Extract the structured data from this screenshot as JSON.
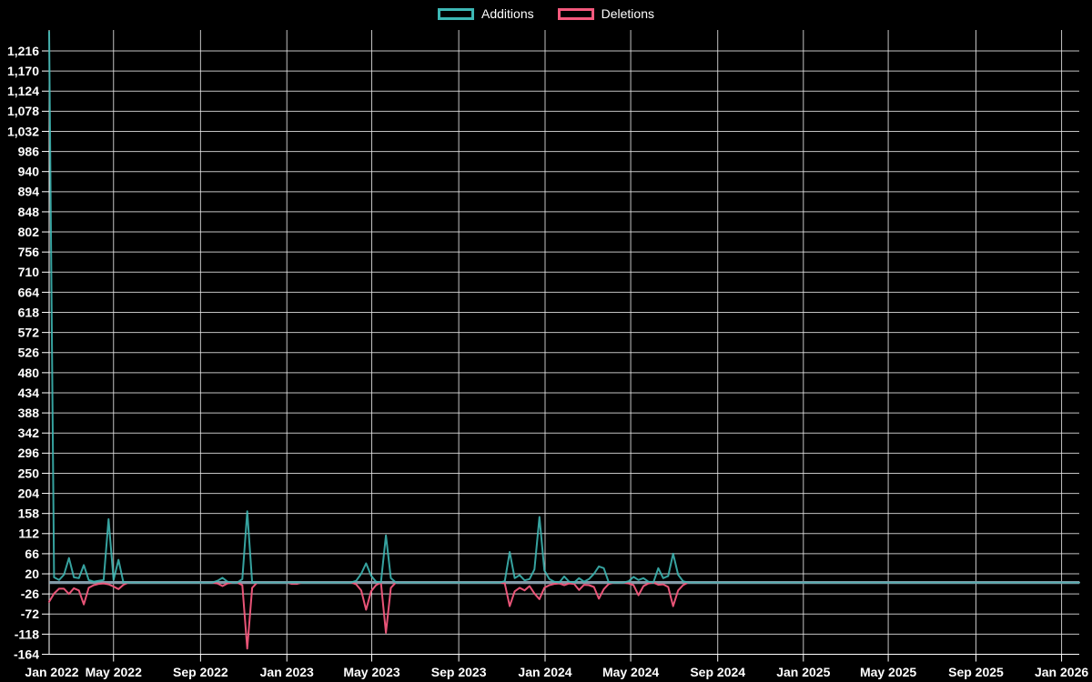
{
  "legend": {
    "items": [
      {
        "id": "additions",
        "label": "Additions",
        "color": "#3db8b5"
      },
      {
        "id": "deletions",
        "label": "Deletions",
        "color": "#f4597d"
      }
    ]
  },
  "chart_data": {
    "type": "line",
    "title": "",
    "xlabel": "",
    "ylabel": "",
    "x_unit": "weeks since 2022-01-30",
    "total_weeks": 209,
    "series": [
      {
        "name": "Additions",
        "color": "#3db8b5"
      },
      {
        "name": "Deletions",
        "color": "#f4597d"
      }
    ],
    "points_note": "sparse [week_index, additions, deletions]; all other weeks are 0",
    "points": [
      [
        0,
        1260,
        -44
      ],
      [
        1,
        12,
        -25
      ],
      [
        2,
        6,
        -14
      ],
      [
        3,
        18,
        -14
      ],
      [
        4,
        56,
        -26
      ],
      [
        5,
        12,
        -13
      ],
      [
        6,
        10,
        -18
      ],
      [
        7,
        40,
        -50
      ],
      [
        8,
        6,
        -12
      ],
      [
        9,
        2,
        -6
      ],
      [
        10,
        4,
        -3
      ],
      [
        11,
        6,
        -2
      ],
      [
        12,
        145,
        -4
      ],
      [
        13,
        6,
        -9
      ],
      [
        14,
        52,
        -15
      ],
      [
        15,
        0,
        -5
      ],
      [
        34,
        4,
        -2
      ],
      [
        35,
        11,
        -8
      ],
      [
        36,
        2,
        -2
      ],
      [
        39,
        8,
        -6
      ],
      [
        40,
        163,
        -151
      ],
      [
        41,
        0,
        -12
      ],
      [
        49,
        0,
        -3
      ],
      [
        50,
        0,
        -3
      ],
      [
        62,
        4,
        -4
      ],
      [
        63,
        20,
        -18
      ],
      [
        64,
        44,
        -62
      ],
      [
        65,
        16,
        -20
      ],
      [
        66,
        2,
        -6
      ],
      [
        68,
        108,
        -115
      ],
      [
        69,
        10,
        -12
      ],
      [
        92,
        3,
        -2
      ],
      [
        93,
        70,
        -54
      ],
      [
        94,
        10,
        -20
      ],
      [
        95,
        17,
        -12
      ],
      [
        96,
        5,
        -18
      ],
      [
        97,
        8,
        -8
      ],
      [
        98,
        30,
        -25
      ],
      [
        99,
        150,
        -38
      ],
      [
        100,
        28,
        -12
      ],
      [
        101,
        8,
        -6
      ],
      [
        102,
        2,
        -3
      ],
      [
        103,
        0,
        -2
      ],
      [
        104,
        14,
        -6
      ],
      [
        105,
        2,
        -2
      ],
      [
        106,
        0,
        -3
      ],
      [
        107,
        10,
        -17
      ],
      [
        108,
        2,
        -5
      ],
      [
        109,
        8,
        -6
      ],
      [
        110,
        20,
        -10
      ],
      [
        111,
        37,
        -37
      ],
      [
        112,
        33,
        -15
      ],
      [
        113,
        0,
        -3
      ],
      [
        117,
        3,
        -2
      ],
      [
        118,
        13,
        -6
      ],
      [
        119,
        6,
        -29
      ],
      [
        120,
        10,
        -8
      ],
      [
        121,
        2,
        -2
      ],
      [
        123,
        33,
        -5
      ],
      [
        124,
        10,
        -4
      ],
      [
        125,
        15,
        -10
      ],
      [
        126,
        66,
        -54
      ],
      [
        127,
        18,
        -18
      ],
      [
        128,
        3,
        -6
      ]
    ],
    "ylim": [
      -164,
      1264
    ],
    "y_ticks": [
      {
        "label": "1,216",
        "value": 1216
      },
      {
        "label": "1,170",
        "value": 1170
      },
      {
        "label": "1,124",
        "value": 1124
      },
      {
        "label": "1,078",
        "value": 1078
      },
      {
        "label": "1,032",
        "value": 1032
      },
      {
        "label": "986",
        "value": 986
      },
      {
        "label": "940",
        "value": 940
      },
      {
        "label": "894",
        "value": 894
      },
      {
        "label": "848",
        "value": 848
      },
      {
        "label": "802",
        "value": 802
      },
      {
        "label": "756",
        "value": 756
      },
      {
        "label": "710",
        "value": 710
      },
      {
        "label": "664",
        "value": 664
      },
      {
        "label": "618",
        "value": 618
      },
      {
        "label": "572",
        "value": 572
      },
      {
        "label": "526",
        "value": 526
      },
      {
        "label": "480",
        "value": 480
      },
      {
        "label": "434",
        "value": 434
      },
      {
        "label": "388",
        "value": 388
      },
      {
        "label": "342",
        "value": 342
      },
      {
        "label": "296",
        "value": 296
      },
      {
        "label": "250",
        "value": 250
      },
      {
        "label": "204",
        "value": 204
      },
      {
        "label": "158",
        "value": 158
      },
      {
        "label": "112",
        "value": 112
      },
      {
        "label": "66",
        "value": 66
      },
      {
        "label": "20",
        "value": 20
      },
      {
        "label": "-26",
        "value": -26
      },
      {
        "label": "-72",
        "value": -72
      },
      {
        "label": "-118",
        "value": -118
      },
      {
        "label": "-164",
        "value": -164
      }
    ],
    "x_ticks": [
      {
        "label": "Jan 2022",
        "week": -4.14
      },
      {
        "label": "May 2022",
        "week": 13
      },
      {
        "label": "Sep 2022",
        "week": 30.57
      },
      {
        "label": "Jan 2023",
        "week": 48
      },
      {
        "label": "May 2023",
        "week": 65.14
      },
      {
        "label": "Sep 2023",
        "week": 82.71
      },
      {
        "label": "Jan 2024",
        "week": 100.14
      },
      {
        "label": "May 2024",
        "week": 117.43
      },
      {
        "label": "Sep 2024",
        "week": 135
      },
      {
        "label": "Jan 2025",
        "week": 152.29
      },
      {
        "label": "May 2025",
        "week": 169.43
      },
      {
        "label": "Sep 2025",
        "week": 187.14
      },
      {
        "label": "Jan 2026",
        "week": 204.43
      }
    ],
    "colors": {
      "background": "#000000",
      "grid": "#e6e6e6",
      "axis": "#ffffff",
      "tick_label": "#ffffff",
      "zero_line": "#8ba3b0",
      "additions": "#3db8b5",
      "deletions": "#f4597d"
    },
    "legend_position": "top-center",
    "grid": true
  }
}
